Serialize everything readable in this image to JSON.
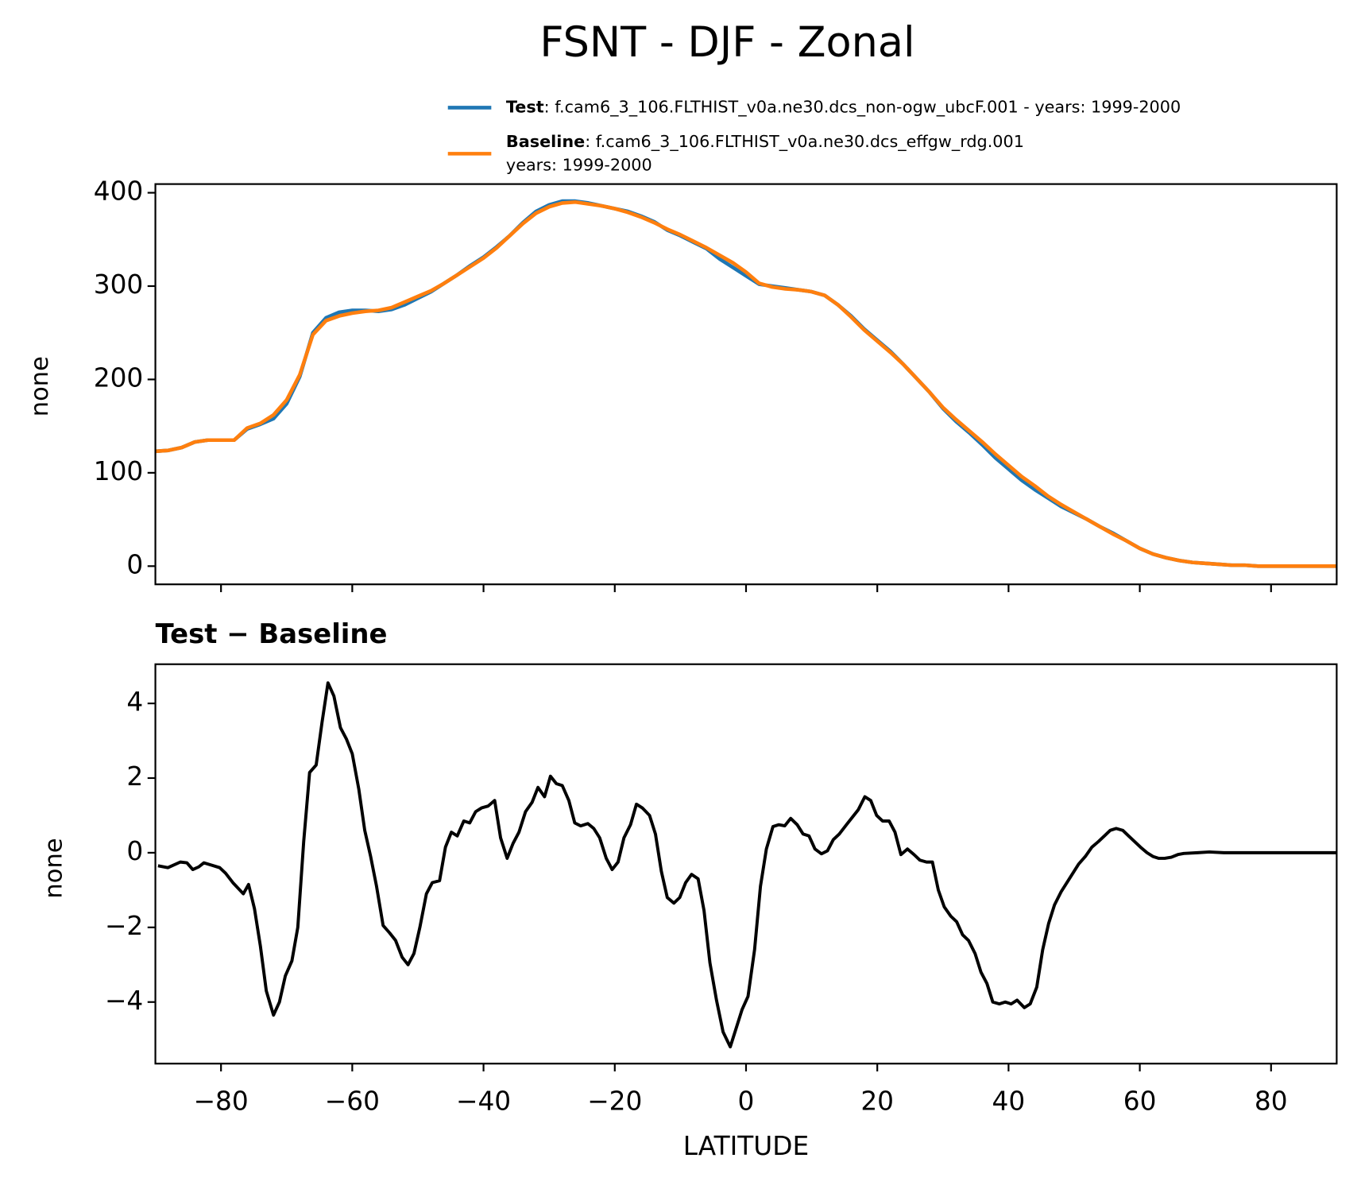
{
  "title": "FSNT - DJF - Zonal",
  "chart_data": [
    {
      "type": "line",
      "ylabel": "none",
      "x": [
        -90,
        -88,
        -86,
        -84,
        -82,
        -80,
        -78,
        -76,
        -74,
        -72,
        -70,
        -68,
        -66,
        -64,
        -62,
        -60,
        -58,
        -56,
        -54,
        -52,
        -50,
        -48,
        -46,
        -44,
        -42,
        -40,
        -38,
        -36,
        -34,
        -32,
        -30,
        -28,
        -26,
        -24,
        -22,
        -20,
        -18,
        -16,
        -14,
        -12,
        -10,
        -8,
        -6,
        -4,
        -2,
        0,
        2,
        4,
        6,
        8,
        10,
        12,
        14,
        16,
        18,
        20,
        22,
        24,
        26,
        28,
        30,
        32,
        34,
        36,
        38,
        40,
        42,
        44,
        46,
        48,
        50,
        52,
        54,
        56,
        58,
        60,
        62,
        64,
        66,
        68,
        70,
        72,
        74,
        76,
        78,
        80,
        82,
        84,
        86,
        88,
        90
      ],
      "series": [
        {
          "name": "Test",
          "description": [
            ": f.cam6_3_106.FLTHIST_v0a.ne30.dcs_non-ogw_ubcF.001 - years: 1999-2000"
          ],
          "color": "#1f77b4",
          "values": [
            123,
            124,
            127,
            133,
            135,
            135,
            135,
            147,
            152,
            158,
            174,
            203,
            250,
            266,
            272,
            274,
            274,
            273,
            275,
            280,
            287,
            294,
            303,
            312,
            322,
            331,
            342,
            354,
            368,
            380,
            387,
            391,
            391,
            389,
            386,
            383,
            380,
            375,
            369,
            360,
            354,
            347,
            340,
            329,
            320,
            311,
            302,
            300,
            298,
            296,
            294,
            290,
            280,
            268,
            254,
            242,
            230,
            216,
            201,
            186,
            169,
            155,
            143,
            130,
            116,
            104,
            92,
            82,
            73,
            64,
            57,
            50,
            42,
            35,
            27,
            19,
            13,
            9,
            6,
            4,
            3,
            2,
            1,
            1,
            0,
            0,
            0,
            0,
            0,
            0,
            0
          ]
        },
        {
          "name": "Baseline",
          "description": [
            ": f.cam6_3_106.FLTHIST_v0a.ne30.dcs_effgw_rdg.001",
            "years: 1999-2000"
          ],
          "color": "#ff7f0e",
          "values": [
            123,
            124,
            127,
            133,
            135,
            135,
            135,
            148,
            153,
            162,
            178,
            205,
            248,
            263,
            268,
            271,
            273,
            274,
            277,
            283,
            289,
            295,
            303,
            312,
            321,
            330,
            341,
            354,
            367,
            378,
            385,
            389,
            390,
            388,
            386,
            383,
            379,
            374,
            368,
            361,
            355,
            348,
            341,
            333,
            325,
            315,
            303,
            299,
            297,
            296,
            294,
            290,
            280,
            267,
            253,
            241,
            229,
            216,
            201,
            186,
            170,
            157,
            145,
            133,
            120,
            108,
            96,
            86,
            75,
            66,
            58,
            50,
            42,
            34,
            27,
            19,
            13,
            9,
            6,
            4,
            3,
            2,
            1,
            1,
            0,
            0,
            0,
            0,
            0,
            0,
            0
          ]
        }
      ],
      "xlim": [
        -90,
        90
      ],
      "xticks": [
        -80,
        -60,
        -40,
        -20,
        0,
        20,
        40,
        60,
        80
      ],
      "ylim": [
        -19.5,
        409.3
      ],
      "yticks": [
        0,
        100,
        200,
        300,
        400
      ]
    },
    {
      "type": "line",
      "title": "Test − Baseline",
      "ylabel": "none",
      "xlabel": "LATITUDE",
      "x": [
        -89.6,
        -88.1,
        -86.2,
        -85.2,
        -84.3,
        -83.4,
        -82.6,
        -81.5,
        -80.2,
        -79.3,
        -78.2,
        -76.6,
        -75.8,
        -74.9,
        -74,
        -73.1,
        -72,
        -71.1,
        -70.2,
        -69.2,
        -68.3,
        -67.4,
        -66.5,
        -65.5,
        -64.6,
        -63.7,
        -62.8,
        -61.8,
        -60.9,
        -60,
        -59,
        -58.1,
        -57.2,
        -56.3,
        -55.3,
        -54.3,
        -53.4,
        -52.4,
        -51.5,
        -50.6,
        -49.7,
        -48.7,
        -47.8,
        -46.7,
        -45.8,
        -44.9,
        -44,
        -43,
        -42.1,
        -41.2,
        -40.3,
        -39.3,
        -38.3,
        -37.4,
        -36.4,
        -35.5,
        -34.6,
        -33.6,
        -32.6,
        -31.7,
        -30.7,
        -29.8,
        -28.9,
        -28,
        -27,
        -26.1,
        -25.2,
        -24.1,
        -23.2,
        -22.3,
        -21.3,
        -20.4,
        -19.5,
        -18.6,
        -17.6,
        -16.7,
        -15.8,
        -14.7,
        -13.8,
        -12.9,
        -12,
        -11,
        -10.1,
        -9.2,
        -8.3,
        -7.3,
        -6.4,
        -5.5,
        -4.5,
        -3.5,
        -2.4,
        -1.5,
        -0.6,
        0.3,
        1.3,
        2.2,
        3.1,
        4.1,
        5,
        5.9,
        6.8,
        7.8,
        8.7,
        9.6,
        10.5,
        11.5,
        12.4,
        13.3,
        14.2,
        15.3,
        16.2,
        17.1,
        18.1,
        19,
        19.9,
        20.8,
        21.8,
        22.7,
        23.6,
        24.6,
        25.6,
        26.5,
        27.5,
        28.4,
        29.3,
        30.2,
        31.2,
        32.1,
        33,
        33.9,
        34.9,
        35.8,
        36.7,
        37.6,
        38.6,
        39.5,
        40.4,
        41.3,
        42.4,
        43.3,
        44.3,
        45.2,
        46.1,
        47,
        48,
        48.9,
        49.8,
        50.7,
        51.7,
        52.7,
        53.7,
        54.6,
        55.5,
        56.4,
        57.4,
        58.3,
        59.2,
        60.1,
        61.1,
        62,
        62.9,
        63.8,
        64.8,
        65.8,
        66.7,
        68.8,
        70.6,
        72.8,
        76.8,
        80.8,
        90
      ],
      "series": [
        {
          "name": "Test − Baseline",
          "color": "#000000",
          "values": [
            -0.35,
            -0.4,
            -0.25,
            -0.27,
            -0.45,
            -0.38,
            -0.27,
            -0.33,
            -0.4,
            -0.55,
            -0.8,
            -1.1,
            -0.85,
            -1.5,
            -2.5,
            -3.7,
            -4.35,
            -4.0,
            -3.3,
            -2.9,
            -2.0,
            0.3,
            2.15,
            2.35,
            3.5,
            4.55,
            4.2,
            3.35,
            3.05,
            2.65,
            1.7,
            0.6,
            -0.1,
            -0.9,
            -1.95,
            -2.15,
            -2.35,
            -2.8,
            -3.0,
            -2.7,
            -2.0,
            -1.1,
            -0.8,
            -0.75,
            0.15,
            0.55,
            0.45,
            0.85,
            0.8,
            1.1,
            1.2,
            1.25,
            1.4,
            0.4,
            -0.15,
            0.25,
            0.55,
            1.1,
            1.35,
            1.75,
            1.5,
            2.05,
            1.85,
            1.8,
            1.4,
            0.8,
            0.72,
            0.78,
            0.65,
            0.4,
            -0.15,
            -0.45,
            -0.25,
            0.4,
            0.75,
            1.3,
            1.2,
            1.0,
            0.5,
            -0.5,
            -1.2,
            -1.35,
            -1.2,
            -0.8,
            -0.58,
            -0.7,
            -1.55,
            -2.95,
            -3.95,
            -4.8,
            -5.2,
            -4.7,
            -4.2,
            -3.85,
            -2.6,
            -0.9,
            0.1,
            0.7,
            0.75,
            0.72,
            0.92,
            0.75,
            0.5,
            0.45,
            0.1,
            -0.03,
            0.05,
            0.35,
            0.5,
            0.75,
            0.95,
            1.15,
            1.5,
            1.4,
            1.0,
            0.85,
            0.85,
            0.55,
            -0.05,
            0.1,
            -0.05,
            -0.2,
            -0.25,
            -0.25,
            -1.0,
            -1.45,
            -1.7,
            -1.85,
            -2.2,
            -2.35,
            -2.7,
            -3.2,
            -3.5,
            -4.0,
            -4.05,
            -4.0,
            -4.05,
            -3.95,
            -4.15,
            -4.05,
            -3.6,
            -2.6,
            -1.9,
            -1.4,
            -1.05,
            -0.8,
            -0.55,
            -0.3,
            -0.1,
            0.15,
            0.3,
            0.45,
            0.6,
            0.65,
            0.6,
            0.45,
            0.3,
            0.15,
            0.0,
            -0.1,
            -0.15,
            -0.15,
            -0.12,
            -0.05,
            -0.02,
            0.0,
            0.02,
            0.0,
            0.0,
            0.0,
            0.0
          ]
        }
      ],
      "xlim": [
        -90,
        90
      ],
      "xticks": [
        {
          "value": -80,
          "label": "−80"
        },
        {
          "value": -60,
          "label": "−60"
        },
        {
          "value": -40,
          "label": "−40"
        },
        {
          "value": -20,
          "label": "−20"
        },
        0,
        20,
        40,
        60,
        80
      ],
      "ylim": [
        -5.65,
        5.05
      ],
      "yticks": [
        {
          "value": -4,
          "label": "−4"
        },
        {
          "value": -2,
          "label": "−2"
        },
        0,
        2,
        4
      ]
    }
  ]
}
